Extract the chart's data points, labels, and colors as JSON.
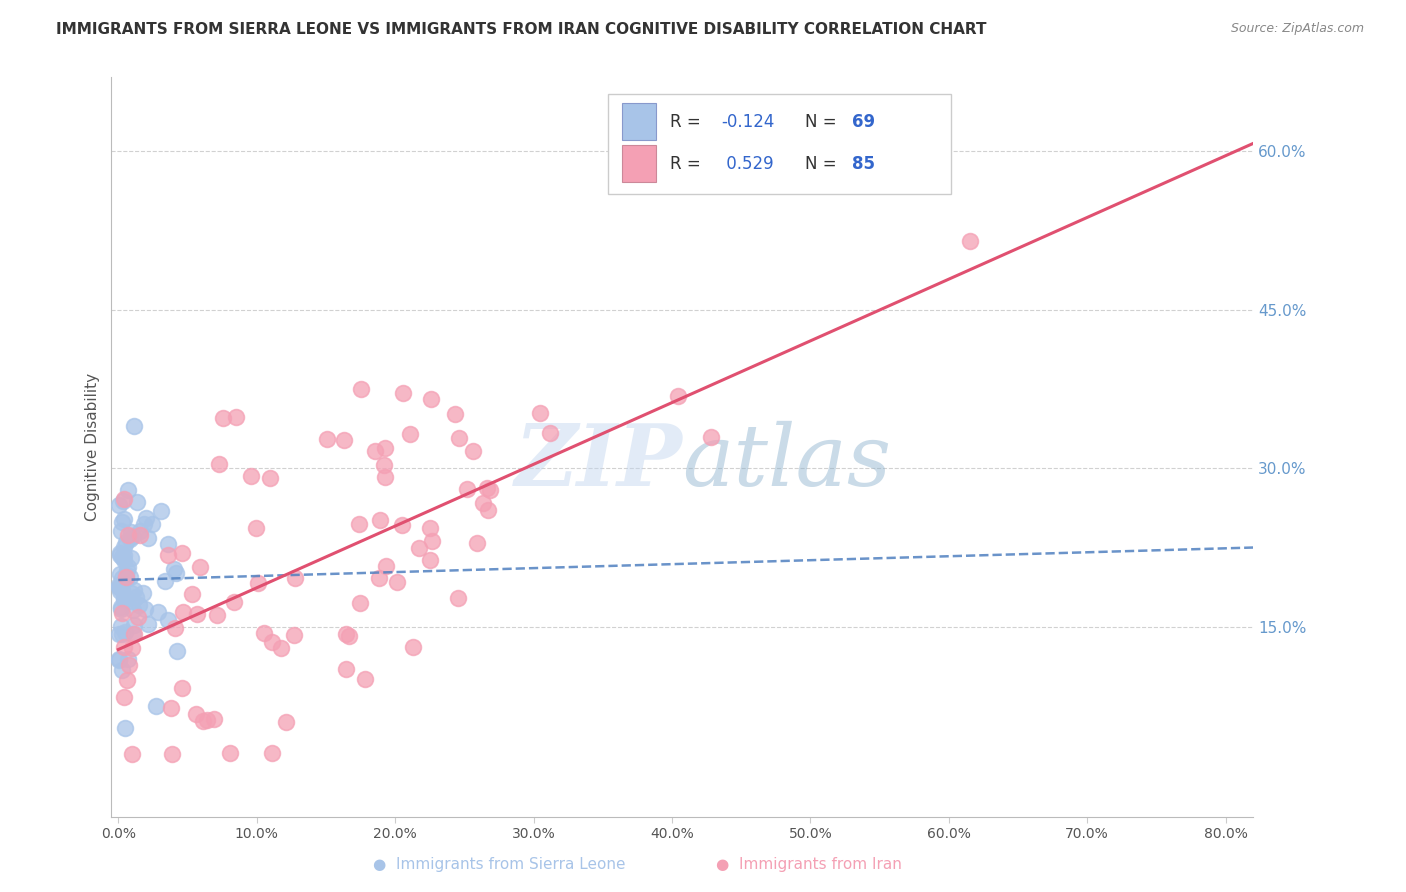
{
  "title": "IMMIGRANTS FROM SIERRA LEONE VS IMMIGRANTS FROM IRAN COGNITIVE DISABILITY CORRELATION CHART",
  "source": "Source: ZipAtlas.com",
  "ylabel": "Cognitive Disability",
  "y_ticks_right": [
    0.15,
    0.3,
    0.45,
    0.6
  ],
  "x_tick_positions": [
    0.0,
    0.1,
    0.2,
    0.3,
    0.4,
    0.5,
    0.6,
    0.7,
    0.8
  ],
  "xlim": [
    -0.005,
    0.82
  ],
  "ylim": [
    -0.03,
    0.67
  ],
  "watermark": "ZIPatlas",
  "sierra_leone_color": "#a8c4e8",
  "iran_color": "#f4a0b4",
  "sierra_leone_line_color": "#5080c0",
  "iran_line_color": "#e05070",
  "R_sierra_leone": -0.124,
  "N_sierra_leone": 69,
  "R_iran": 0.529,
  "N_iran": 85,
  "background_color": "#ffffff",
  "grid_color": "#cccccc",
  "right_tick_color": "#6699cc",
  "title_color": "#333333",
  "source_color": "#888888"
}
